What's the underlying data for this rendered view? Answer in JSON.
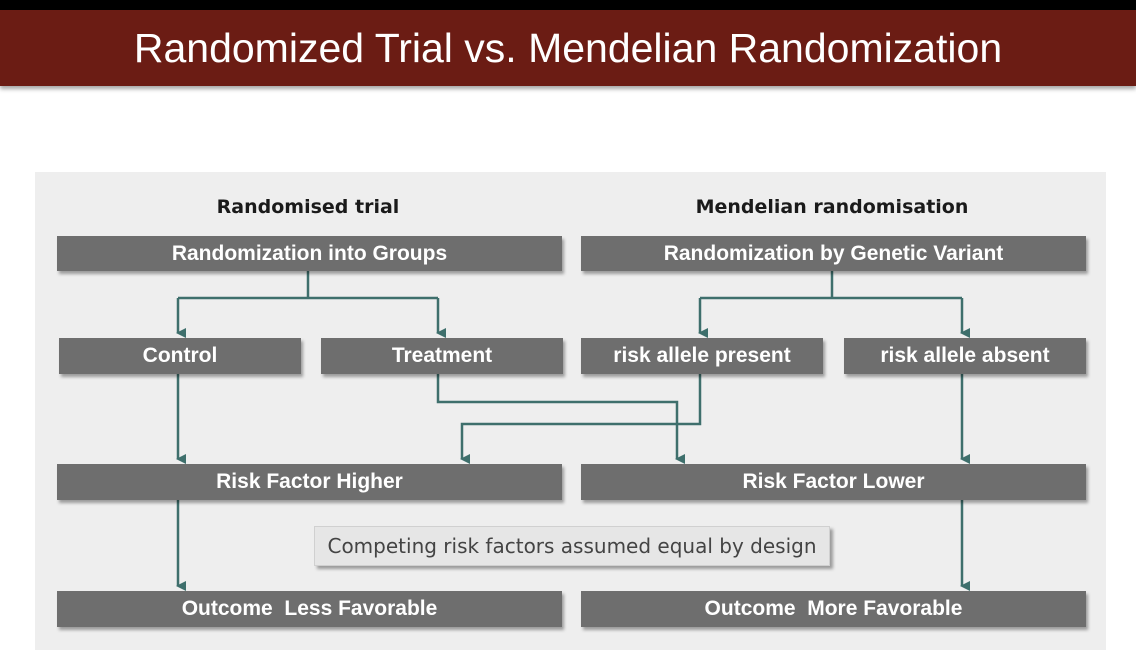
{
  "slide": {
    "title": "Randomized Trial vs. Mendelian Randomization"
  },
  "diagram": {
    "left_heading": "Randomised trial",
    "right_heading": "Mendelian randomisation",
    "boxes": {
      "randomization_groups": "Randomization into Groups",
      "randomization_genetic": "Randomization by Genetic Variant",
      "control": "Control",
      "treatment": "Treatment",
      "risk_allele_present": "risk allele present",
      "risk_allele_absent": "risk allele absent",
      "risk_factor_higher": "Risk Factor Higher",
      "risk_factor_lower": "Risk Factor Lower",
      "outcome_less": "Outcome  Less Favorable",
      "outcome_more": "Outcome  More Favorable"
    },
    "note": "Competing risk factors assumed equal by design"
  },
  "colors": {
    "title_bar": "#6b1c14",
    "box_fill": "#6e6e6e",
    "connector": "#3e6f6c",
    "panel": "#eeeeee"
  }
}
